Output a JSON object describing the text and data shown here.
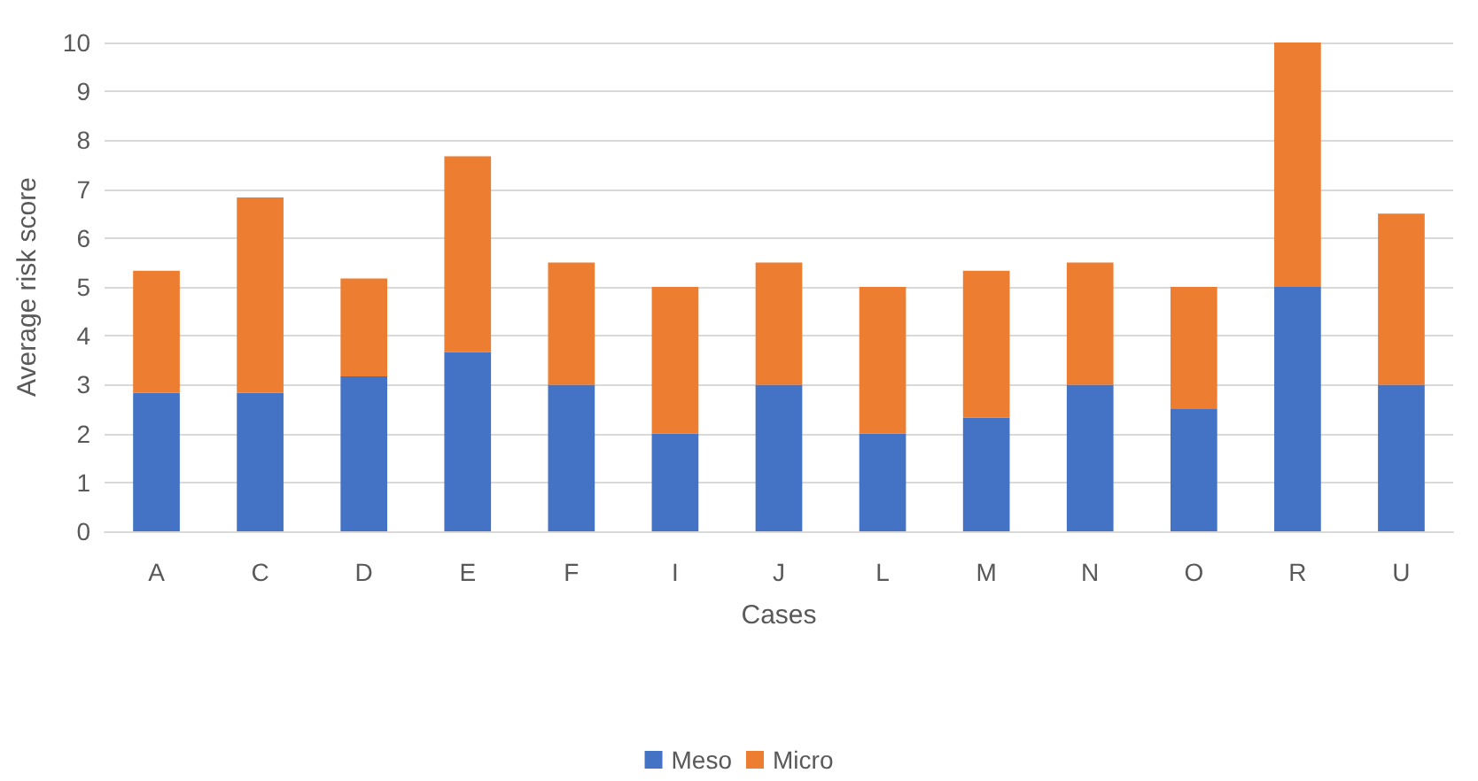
{
  "chart_data": {
    "type": "bar",
    "stacked": true,
    "xlabel": "Cases",
    "ylabel": "Average risk score",
    "categories": [
      "A",
      "C",
      "D",
      "E",
      "F",
      "I",
      "J",
      "L",
      "M",
      "N",
      "O",
      "R",
      "U"
    ],
    "series": [
      {
        "name": "Meso",
        "color": "#4472c4",
        "values": [
          2.83,
          2.83,
          3.17,
          3.67,
          3,
          2,
          3,
          2,
          2.33,
          3,
          2.5,
          5,
          3
        ]
      },
      {
        "name": "Micro",
        "color": "#ed7d31",
        "values": [
          2.5,
          4,
          2,
          4,
          2.5,
          3,
          2.5,
          3,
          3,
          2.5,
          2.5,
          5,
          3.5
        ]
      }
    ],
    "ylim": [
      0,
      10
    ],
    "yticks": [
      0,
      1,
      2,
      3,
      4,
      5,
      6,
      7,
      8,
      9,
      10
    ],
    "grid": "y",
    "legend": "bottom"
  }
}
